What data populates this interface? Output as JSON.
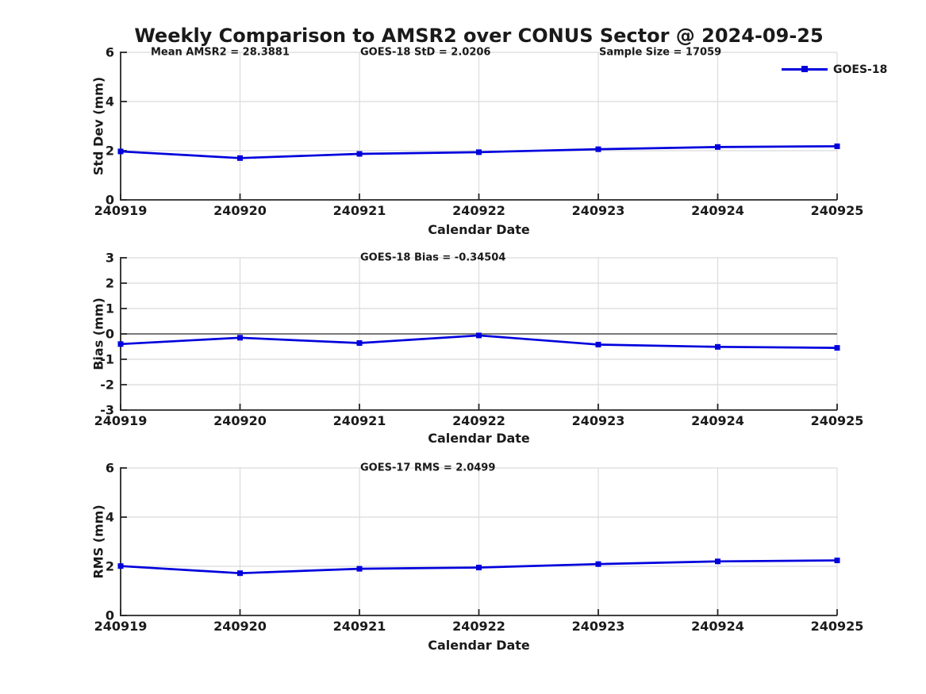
{
  "page": {
    "title": "Weekly Comparison to AMSR2 over CONUS Sector @ 2024-09-25"
  },
  "colors": {
    "series_blue": "#0000dd",
    "axis": "#262626",
    "grid": "#dbdbdb",
    "zero_line": "#4d4d4d",
    "text": "#1a1a1a",
    "background": "#ffffff"
  },
  "legend": {
    "label": "GOES-18",
    "position": "top-right-outside",
    "marker": "filled-square"
  },
  "chart_data": [
    {
      "type": "line",
      "panel": "std-dev",
      "x": [
        "240919",
        "240920",
        "240921",
        "240922",
        "240923",
        "240924",
        "240925"
      ],
      "series": [
        {
          "name": "GOES-18",
          "color": "#0000dd",
          "marker": "square",
          "values": [
            1.97,
            1.7,
            1.87,
            1.94,
            2.06,
            2.15,
            2.18
          ]
        }
      ],
      "annotations": [
        "Mean AMSR2 = 28.3881",
        "GOES-18 StD = 2.0206",
        "Sample Size = 17059"
      ],
      "xlabel": "Calendar Date",
      "ylabel": "Std Dev (mm)",
      "ylim": [
        0,
        6
      ],
      "yticks": [
        0,
        2,
        4,
        6
      ],
      "grid": true,
      "zero_line": false
    },
    {
      "type": "line",
      "panel": "bias",
      "x": [
        "240919",
        "240920",
        "240921",
        "240922",
        "240923",
        "240924",
        "240925"
      ],
      "series": [
        {
          "name": "GOES-18",
          "color": "#0000dd",
          "marker": "square",
          "values": [
            -0.4,
            -0.15,
            -0.36,
            -0.06,
            -0.42,
            -0.51,
            -0.55
          ]
        }
      ],
      "annotations": [
        "GOES-18 Bias  = -0.34504"
      ],
      "xlabel": "Calendar Date",
      "ylabel": "Bias (mm)",
      "ylim": [
        -3,
        3
      ],
      "yticks": [
        -3,
        -2,
        -1,
        0,
        1,
        2,
        3
      ],
      "grid": true,
      "zero_line": true
    },
    {
      "type": "line",
      "panel": "rms",
      "x": [
        "240919",
        "240920",
        "240921",
        "240922",
        "240923",
        "240924",
        "240925"
      ],
      "series": [
        {
          "name": "GOES-18",
          "color": "#0000dd",
          "marker": "square",
          "values": [
            2.01,
            1.72,
            1.9,
            1.95,
            2.09,
            2.2,
            2.24
          ]
        }
      ],
      "annotations": [
        "GOES-17 RMS = 2.0499"
      ],
      "xlabel": "Calendar Date",
      "ylabel": "RMS (mm)",
      "ylim": [
        0,
        6
      ],
      "yticks": [
        0,
        2,
        4,
        6
      ],
      "grid": true,
      "zero_line": false
    }
  ]
}
